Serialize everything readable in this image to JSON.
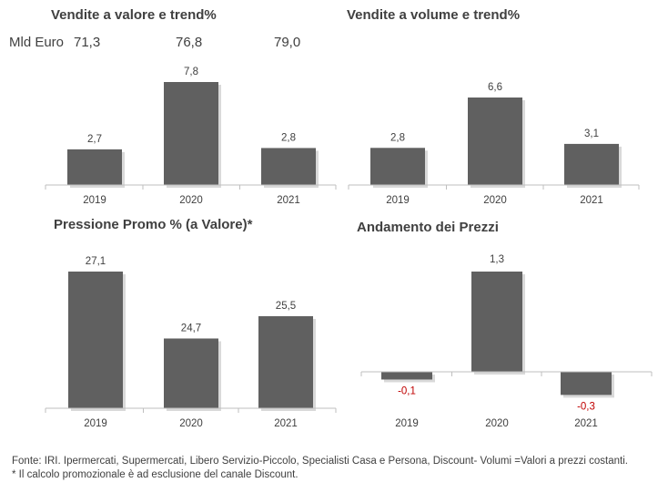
{
  "mld_row": {
    "label": "Mld Euro",
    "values": [
      "71,3",
      "76,8",
      "79,0"
    ]
  },
  "colors": {
    "bar": "#606060",
    "negative_label": "#c00000",
    "text": "#404040",
    "axis": "#bfbfbf"
  },
  "chart_data": [
    {
      "type": "bar",
      "title": "Vendite a valore e trend%",
      "categories": [
        "2019",
        "2020",
        "2021"
      ],
      "values": [
        2.7,
        7.8,
        2.8
      ],
      "labels": [
        "2,7",
        "7,8",
        "2,8"
      ],
      "ylim": [
        0,
        7.8
      ],
      "grid": false
    },
    {
      "type": "bar",
      "title": "Vendite a volume e trend%",
      "categories": [
        "2019",
        "2020",
        "2021"
      ],
      "values": [
        2.8,
        6.6,
        3.1
      ],
      "labels": [
        "2,8",
        "6,6",
        "3,1"
      ],
      "ylim": [
        0,
        6.6
      ],
      "grid": false
    },
    {
      "type": "bar",
      "title": "Pressione Promo % (a Valore)*",
      "categories": [
        "2019",
        "2020",
        "2021"
      ],
      "values": [
        27.1,
        24.7,
        25.5
      ],
      "labels": [
        "27,1",
        "24,7",
        "25,5"
      ],
      "ylim": [
        22.2,
        27.1
      ],
      "grid": false
    },
    {
      "type": "bar",
      "title": "Andamento dei Prezzi",
      "categories": [
        "2019",
        "2020",
        "2021"
      ],
      "values": [
        -0.1,
        1.3,
        -0.3
      ],
      "labels": [
        "-0,1",
        "1,3",
        "-0,3"
      ],
      "ylim": [
        -0.3,
        1.3
      ],
      "grid": false
    }
  ],
  "footnote": {
    "line1": "Fonte: IRI. Ipermercati, Supermercati, Libero Servizio-Piccolo, Specialisti Casa e Persona, Discount-  Volumi =Valori a prezzi costanti.",
    "line2": "* Il calcolo promozionale è ad esclusione del canale Discount."
  }
}
